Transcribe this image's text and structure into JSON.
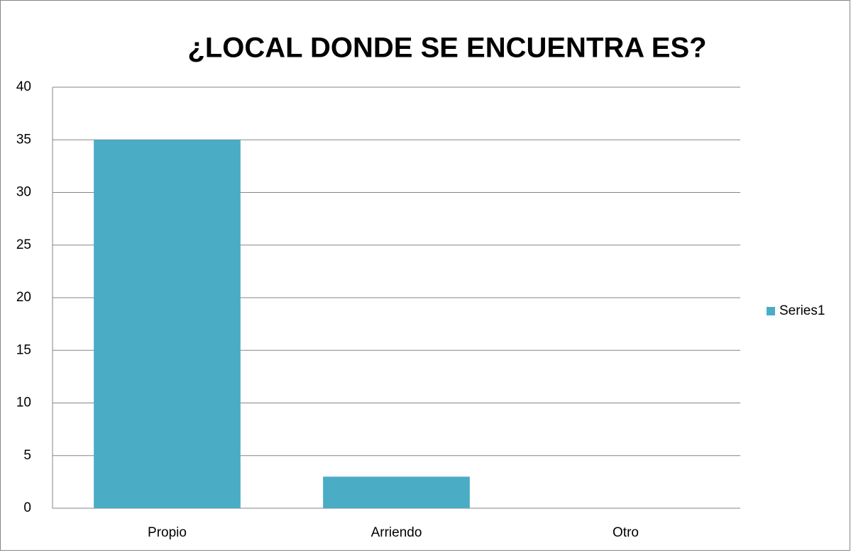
{
  "chart_data": {
    "type": "bar",
    "title": "¿LOCAL DONDE SE ENCUENTRA ES?",
    "categories": [
      "Propio",
      "Arriendo",
      "Otro"
    ],
    "series": [
      {
        "name": "Series1",
        "color": "#4bacc6",
        "values": [
          35,
          3,
          0
        ]
      }
    ],
    "ylim": [
      0,
      40
    ],
    "yticks": [
      0,
      5,
      10,
      15,
      20,
      25,
      30,
      35,
      40
    ],
    "grid": true,
    "legend": "right"
  }
}
